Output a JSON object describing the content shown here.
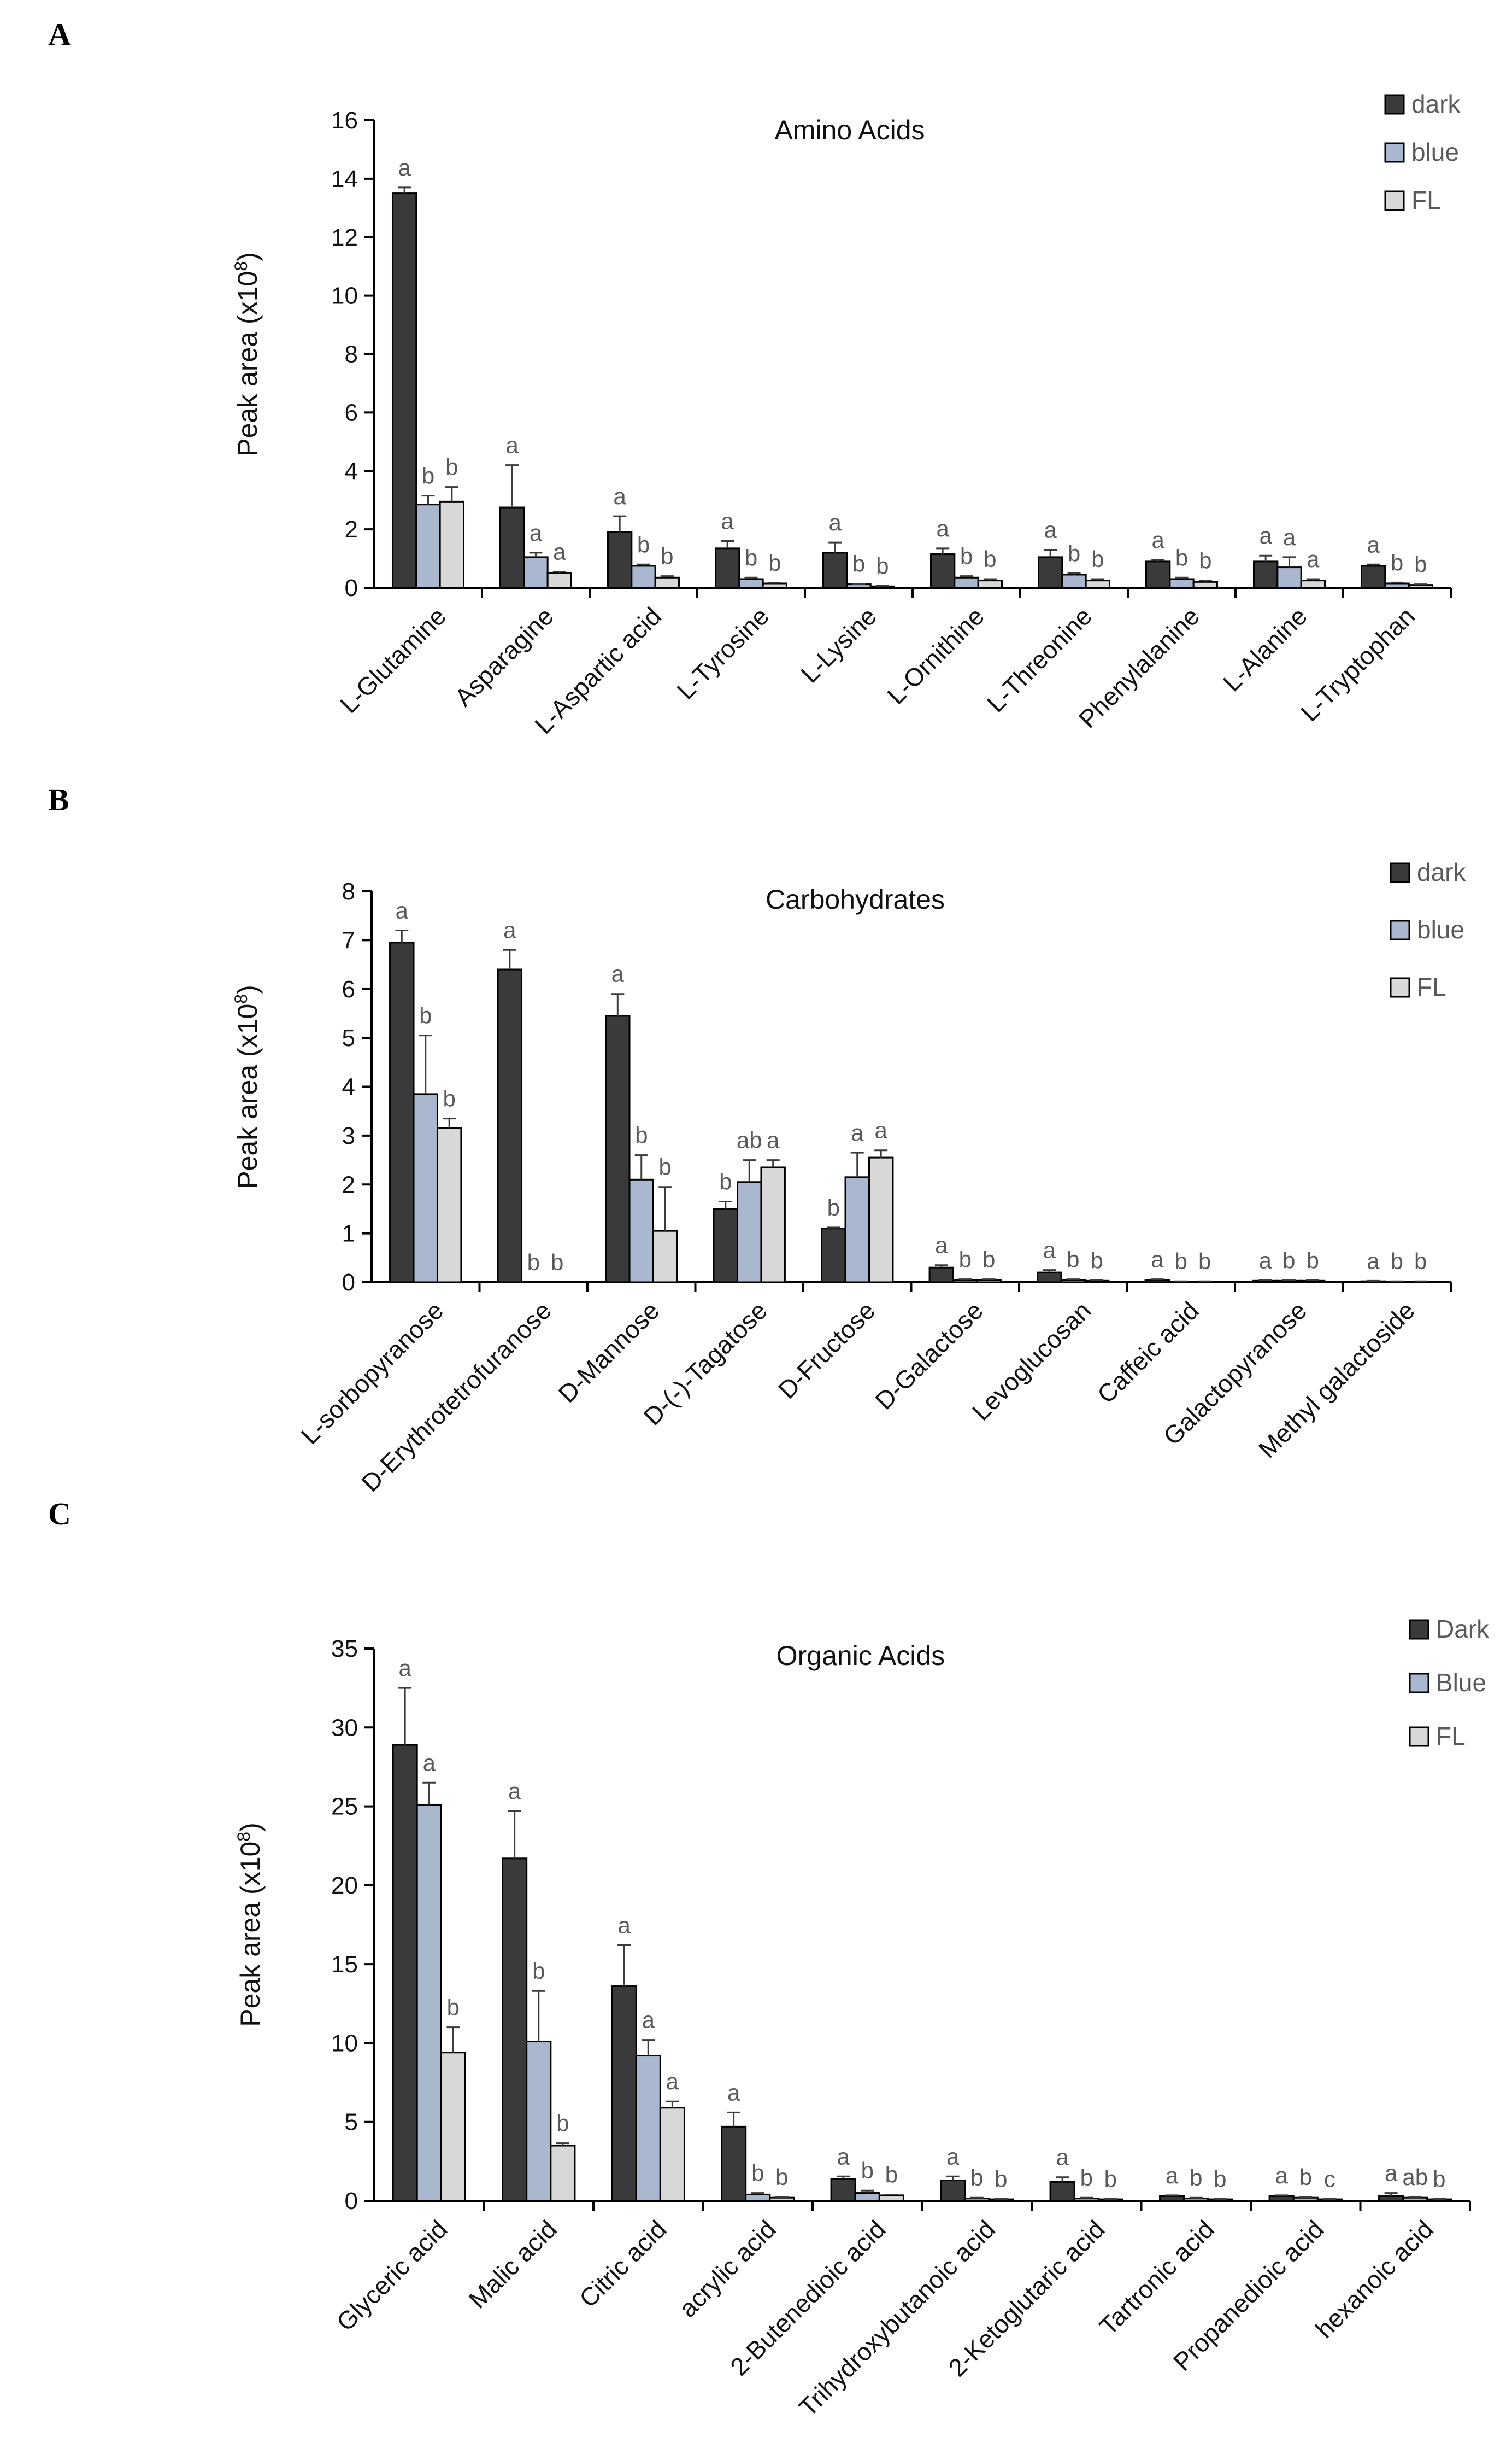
{
  "page": {
    "background": "#ffffff"
  },
  "colors": {
    "dark": "#3a3a3a",
    "blue": "#a9b8cf",
    "fl": "#d8d8d8",
    "axis": "#000000",
    "text": "#595959",
    "errorbar": "#3c3c3c"
  },
  "chart_data": [
    {
      "panel_label": "A",
      "type": "bar",
      "title": "Amino Acids",
      "ylabel": "Peak area (x10",
      "ylabel_sup": "8",
      "ylabel_close": ")",
      "ylim": [
        0,
        16
      ],
      "yticks": [
        0,
        2,
        4,
        6,
        8,
        10,
        12,
        14,
        16
      ],
      "legend_position": "top-right",
      "categories": [
        "L-Glutamine",
        "Asparagine",
        "L-Aspartic acid",
        "L-Tyrosine",
        "L-Lysine",
        "L-Ornithine",
        "L-Threonine",
        "Phenylalanine",
        "L-Alanine",
        "L-Tryptophan"
      ],
      "series": [
        {
          "name": "dark",
          "values": [
            13.5,
            2.75,
            1.9,
            1.35,
            1.2,
            1.15,
            1.05,
            0.9,
            0.9,
            0.75
          ],
          "errors": [
            0.2,
            1.45,
            0.55,
            0.25,
            0.35,
            0.2,
            0.25,
            0.05,
            0.2,
            0.05
          ],
          "letters": [
            "a",
            "a",
            "a",
            "a",
            "a",
            "a",
            "a",
            "a",
            "a",
            "a"
          ]
        },
        {
          "name": "blue",
          "values": [
            2.85,
            1.05,
            0.75,
            0.3,
            0.12,
            0.35,
            0.45,
            0.3,
            0.7,
            0.15
          ],
          "errors": [
            0.3,
            0.15,
            0.05,
            0.05,
            0.02,
            0.05,
            0.05,
            0.05,
            0.35,
            0.03
          ],
          "letters": [
            "b",
            "a",
            "b",
            "b",
            "b",
            "b",
            "b",
            "b",
            "a",
            "b"
          ]
        },
        {
          "name": "FL",
          "values": [
            2.95,
            0.5,
            0.35,
            0.15,
            0.05,
            0.25,
            0.25,
            0.2,
            0.25,
            0.1
          ],
          "errors": [
            0.5,
            0.05,
            0.05,
            0.02,
            0.02,
            0.05,
            0.05,
            0.05,
            0.05,
            0.02
          ],
          "letters": [
            "b",
            "a",
            "b",
            "b",
            "b",
            "b",
            "b",
            "b",
            "a",
            "b"
          ]
        }
      ]
    },
    {
      "panel_label": "B",
      "type": "bar",
      "title": "Carbohydrates",
      "ylabel": "Peak area (x10",
      "ylabel_sup": "8",
      "ylabel_close": ")",
      "ylim": [
        0,
        8
      ],
      "yticks": [
        0,
        1,
        2,
        3,
        4,
        5,
        6,
        7,
        8
      ],
      "legend_position": "top-right",
      "categories": [
        "L-sorbopyranose",
        "D-Erythrotetrofuranose",
        "D-Mannose",
        "D-(-)-Tagatose",
        "D-Fructose",
        "D-Galactose",
        "Levoglucosan",
        "Caffeic acid",
        "Galactopyranose",
        "Methyl galactoside"
      ],
      "series": [
        {
          "name": "dark",
          "values": [
            6.95,
            6.4,
            5.45,
            1.5,
            1.1,
            0.3,
            0.2,
            0.05,
            0.03,
            0.02
          ],
          "errors": [
            0.25,
            0.4,
            0.45,
            0.15,
            0.02,
            0.05,
            0.05,
            0.01,
            0.01,
            0.01
          ],
          "letters": [
            "a",
            "a",
            "a",
            "b",
            "b",
            "a",
            "a",
            "a",
            "a",
            "a"
          ]
        },
        {
          "name": "blue",
          "values": [
            3.85,
            0,
            2.1,
            2.05,
            2.15,
            0.05,
            0.05,
            0.01,
            0.03,
            0.01
          ],
          "errors": [
            1.2,
            0,
            0.5,
            0.45,
            0.5,
            0.01,
            0.01,
            0.01,
            0.01,
            0.01
          ],
          "letters": [
            "b",
            "b",
            "b",
            "ab",
            "a",
            "b",
            "b",
            "b",
            "b",
            "b"
          ]
        },
        {
          "name": "FL",
          "values": [
            3.15,
            0,
            1.05,
            2.35,
            2.55,
            0.05,
            0.03,
            0.01,
            0.03,
            0.01
          ],
          "errors": [
            0.2,
            0,
            0.9,
            0.15,
            0.15,
            0.01,
            0.01,
            0.01,
            0.01,
            0.01
          ],
          "letters": [
            "b",
            "b",
            "b",
            "a",
            "a",
            "b",
            "b",
            "b",
            "b",
            "b"
          ]
        }
      ]
    },
    {
      "panel_label": "C",
      "type": "bar",
      "title": "Organic Acids",
      "ylabel": "Peak area (x10",
      "ylabel_sup": "8",
      "ylabel_close": ")",
      "ylim": [
        0,
        35
      ],
      "yticks": [
        0,
        5,
        10,
        15,
        20,
        25,
        30,
        35
      ],
      "legend_position": "top-right",
      "categories": [
        "Glyceric acid",
        "Malic acid",
        "Citric acid",
        "acrylic acid",
        "2-Butenedioic acid",
        "Trihydroxybutanoic acid",
        "2-Ketoglutaric acid",
        "Tartronic acid",
        "Propanedioic acid",
        "hexanoic acid"
      ],
      "series": [
        {
          "name": "Dark",
          "values": [
            28.9,
            21.7,
            13.6,
            4.7,
            1.4,
            1.3,
            1.2,
            0.3,
            0.3,
            0.3
          ],
          "errors": [
            3.6,
            3.0,
            2.6,
            0.9,
            0.15,
            0.25,
            0.3,
            0.05,
            0.05,
            0.2
          ],
          "letters": [
            "a",
            "a",
            "a",
            "a",
            "a",
            "a",
            "a",
            "a",
            "a",
            "a"
          ]
        },
        {
          "name": "Blue",
          "values": [
            25.1,
            10.1,
            9.2,
            0.4,
            0.5,
            0.15,
            0.15,
            0.15,
            0.2,
            0.2
          ],
          "errors": [
            1.4,
            3.2,
            1.0,
            0.1,
            0.15,
            0.05,
            0.05,
            0.05,
            0.05,
            0.05
          ],
          "letters": [
            "a",
            "b",
            "a",
            "b",
            "b",
            "b",
            "b",
            "b",
            "b",
            "ab"
          ]
        },
        {
          "name": "FL",
          "values": [
            9.4,
            3.5,
            5.9,
            0.2,
            0.35,
            0.1,
            0.1,
            0.1,
            0.1,
            0.1
          ],
          "errors": [
            1.6,
            0.15,
            0.4,
            0.05,
            0.05,
            0.02,
            0.02,
            0.02,
            0.02,
            0.02
          ],
          "letters": [
            "b",
            "b",
            "a",
            "b",
            "b",
            "b",
            "b",
            "b",
            "c",
            "b"
          ]
        }
      ]
    }
  ]
}
